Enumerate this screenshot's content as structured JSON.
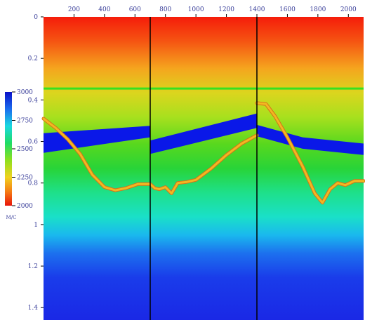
{
  "chart_data": {
    "type": "heatmap",
    "title": "",
    "top_axis": {
      "ticks": [
        200,
        400,
        600,
        800,
        1000,
        1200,
        1400,
        1600,
        1800,
        2000
      ],
      "labels": [
        "200",
        "400",
        "600",
        "800",
        "1000",
        "1200",
        "1400",
        "1600",
        "1800",
        "2000"
      ],
      "range": [
        0,
        2100
      ]
    },
    "left_axis": {
      "ticks": [
        0,
        0.2,
        0.4,
        0.6,
        0.8,
        1.0,
        1.2,
        1.4
      ],
      "labels": [
        "0",
        "0.2",
        "0.4",
        "0.6",
        "0.8",
        "1",
        "1.2",
        "1.4"
      ],
      "range": [
        0,
        1.46
      ],
      "inverted": true
    },
    "colorbar": {
      "ticks": [
        3000,
        2750,
        2500,
        2250,
        2000
      ],
      "labels": [
        "3000",
        "2750",
        "2500",
        "2250",
        "2000"
      ],
      "range": [
        2000,
        3000
      ],
      "unit": "M/C"
    },
    "panel_dividers_x": [
      700,
      1400
    ],
    "horizon_line": {
      "y": 0.345,
      "color": "#39e021"
    },
    "high_velocity_layer": {
      "color": "#0a18e8",
      "top": [
        {
          "x": 0,
          "y": 0.56
        },
        {
          "x": 700,
          "y": 0.525
        },
        {
          "x": 700,
          "y": 0.595
        },
        {
          "x": 1400,
          "y": 0.465
        },
        {
          "x": 1400,
          "y": 0.52
        },
        {
          "x": 1700,
          "y": 0.58
        },
        {
          "x": 2100,
          "y": 0.61
        }
      ],
      "bottom": [
        {
          "x": 0,
          "y": 0.655
        },
        {
          "x": 700,
          "y": 0.58
        },
        {
          "x": 700,
          "y": 0.66
        },
        {
          "x": 1400,
          "y": 0.535
        },
        {
          "x": 1400,
          "y": 0.575
        },
        {
          "x": 1700,
          "y": 0.635
        },
        {
          "x": 2100,
          "y": 0.665
        }
      ]
    },
    "velocity_curve": {
      "color": "#f2b820",
      "points": [
        {
          "x": 0,
          "y": 0.49
        },
        {
          "x": 80,
          "y": 0.535
        },
        {
          "x": 160,
          "y": 0.59
        },
        {
          "x": 240,
          "y": 0.66
        },
        {
          "x": 320,
          "y": 0.76
        },
        {
          "x": 400,
          "y": 0.82
        },
        {
          "x": 470,
          "y": 0.835
        },
        {
          "x": 540,
          "y": 0.825
        },
        {
          "x": 620,
          "y": 0.805
        },
        {
          "x": 700,
          "y": 0.805
        },
        {
          "x": 730,
          "y": 0.825
        },
        {
          "x": 760,
          "y": 0.83
        },
        {
          "x": 800,
          "y": 0.82
        },
        {
          "x": 840,
          "y": 0.85
        },
        {
          "x": 880,
          "y": 0.8
        },
        {
          "x": 940,
          "y": 0.795
        },
        {
          "x": 1000,
          "y": 0.785
        },
        {
          "x": 1100,
          "y": 0.73
        },
        {
          "x": 1200,
          "y": 0.665
        },
        {
          "x": 1300,
          "y": 0.61
        },
        {
          "x": 1400,
          "y": 0.57
        },
        {
          "x": 1400,
          "y": 0.415
        },
        {
          "x": 1460,
          "y": 0.42
        },
        {
          "x": 1520,
          "y": 0.48
        },
        {
          "x": 1600,
          "y": 0.58
        },
        {
          "x": 1700,
          "y": 0.72
        },
        {
          "x": 1780,
          "y": 0.85
        },
        {
          "x": 1830,
          "y": 0.895
        },
        {
          "x": 1880,
          "y": 0.83
        },
        {
          "x": 1930,
          "y": 0.8
        },
        {
          "x": 1980,
          "y": 0.81
        },
        {
          "x": 2040,
          "y": 0.79
        },
        {
          "x": 2100,
          "y": 0.79
        }
      ]
    }
  }
}
